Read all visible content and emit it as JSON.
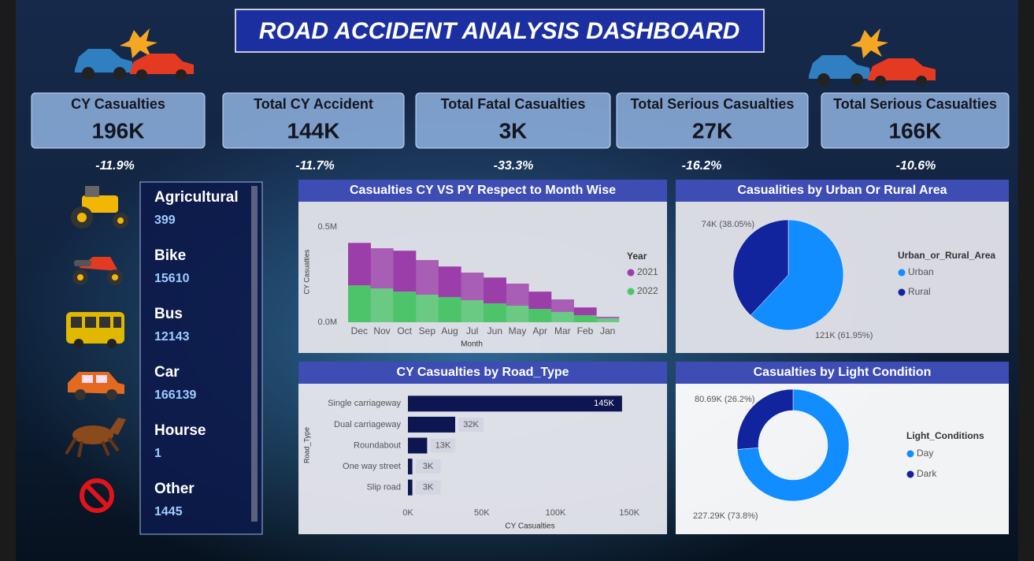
{
  "title": "ROAD ACCIDENT ANALYSIS DASHBOARD",
  "kpis": [
    {
      "label": "CY Casualties",
      "value": "196K",
      "change": "-11.9%"
    },
    {
      "label": "Total CY Accident",
      "value": "144K",
      "change": "-11.7%"
    },
    {
      "label": "Total Fatal Casualties",
      "value": "3K",
      "change": "-33.3%"
    },
    {
      "label": "Total Serious Casualties",
      "value": "27K",
      "change": "-16.2%"
    },
    {
      "label": "Total Serious Casualties",
      "value": "166K",
      "change": "-10.6%"
    }
  ],
  "vehicles": [
    {
      "name": "Agricultural",
      "value": 399
    },
    {
      "name": "Bike",
      "value": 15610
    },
    {
      "name": "Bus",
      "value": 12143
    },
    {
      "name": "Car",
      "value": 166139
    },
    {
      "name": "Hourse",
      "value": 1
    },
    {
      "name": "Other",
      "value": 1445
    }
  ],
  "chart_data": [
    {
      "type": "area",
      "title": "Casualties CY VS PY Respect to Month Wise",
      "x_label": "Month",
      "y_label": "CY Casualties",
      "legend_title": "Year",
      "categories": [
        "Dec",
        "Nov",
        "Oct",
        "Sep",
        "Aug",
        "Jul",
        "Jun",
        "May",
        "Apr",
        "Mar",
        "Feb",
        "Jan"
      ],
      "series": [
        {
          "name": "2021",
          "color": "#9c3ea9",
          "values": [
            223000,
            211000,
            215000,
            182000,
            161000,
            145000,
            136000,
            116000,
            91000,
            66000,
            41000,
            8000
          ]
        },
        {
          "name": "2022",
          "color": "#4ec46a",
          "values": [
            194000,
            178000,
            161000,
            145000,
            132000,
            116000,
            99000,
            87000,
            70000,
            54000,
            37000,
            21000
          ]
        }
      ],
      "ylim": [
        0,
        530000
      ],
      "yticks": [
        {
          "value": 0,
          "label": "0.0M"
        },
        {
          "value": 500000,
          "label": "0.5M"
        }
      ]
    },
    {
      "type": "pie",
      "title": "Casualities by Urban Or Rural Area",
      "legend_title": "Urban_or_Rural_Area",
      "categories": [
        "Urban",
        "Rural"
      ],
      "values": [
        61.95,
        38.05
      ],
      "value_labels": [
        "121K (61.95%)",
        "74K (38.05%)"
      ],
      "colors": [
        "#118dff",
        "#12239e"
      ]
    },
    {
      "type": "bar",
      "orientation": "horizontal",
      "title": "CY Casualties by Road_Type",
      "x_label": "CY Casualties",
      "y_label": "Road_Type",
      "categories": [
        "Single carriageway",
        "Dual carriageway",
        "Roundabout",
        "One way street",
        "Slip road"
      ],
      "values": [
        145000,
        32000,
        13000,
        3000,
        3000
      ],
      "value_labels": [
        "145K",
        "32K",
        "13K",
        "3K",
        "3K"
      ],
      "color": "#0d1650",
      "xlim": [
        0,
        160000
      ],
      "xticks": [
        {
          "value": 0,
          "label": "0K"
        },
        {
          "value": 50000,
          "label": "50K"
        },
        {
          "value": 100000,
          "label": "100K"
        },
        {
          "value": 150000,
          "label": "150K"
        }
      ]
    },
    {
      "type": "donut",
      "title": "Casualties by Light Condition",
      "legend_title": "Light_Conditions",
      "categories": [
        "Day",
        "Dark"
      ],
      "values": [
        73.8,
        26.2
      ],
      "value_labels": [
        "227.29K (73.8%)",
        "80.69K (26.2%)"
      ],
      "colors": [
        "#118dff",
        "#12239e"
      ]
    }
  ]
}
